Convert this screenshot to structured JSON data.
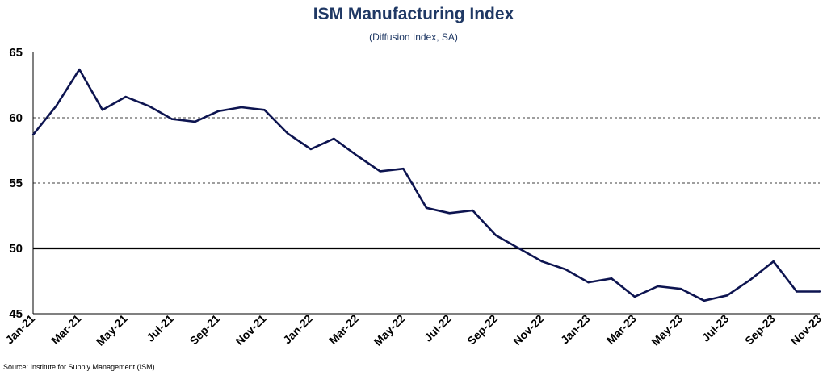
{
  "chart_data": {
    "type": "line",
    "title": "ISM Manufacturing Index",
    "subtitle": "(Diffusion Index, SA)",
    "source": "Source: Institute for Supply Management (ISM)",
    "ylim": [
      45,
      65
    ],
    "yticks": [
      45,
      50,
      55,
      60,
      65
    ],
    "reference_line": 50,
    "grid": "dashed horizontal at 55 and 60",
    "x_tick_labels": [
      "Jan-21",
      "Mar-21",
      "May-21",
      "Jul-21",
      "Sep-21",
      "Nov-21",
      "Jan-22",
      "Mar-22",
      "May-22",
      "Jul-22",
      "Sep-22",
      "Nov-22",
      "Jan-23",
      "Mar-23",
      "May-23",
      "Jul-23",
      "Sep-23",
      "Nov-23"
    ],
    "x": [
      "Jan-21",
      "Feb-21",
      "Mar-21",
      "Apr-21",
      "May-21",
      "Jun-21",
      "Jul-21",
      "Aug-21",
      "Sep-21",
      "Oct-21",
      "Nov-21",
      "Dec-21",
      "Jan-22",
      "Feb-22",
      "Mar-22",
      "Apr-22",
      "May-22",
      "Jun-22",
      "Jul-22",
      "Aug-22",
      "Sep-22",
      "Oct-22",
      "Nov-22",
      "Dec-22",
      "Jan-23",
      "Feb-23",
      "Mar-23",
      "Apr-23",
      "May-23",
      "Jun-23",
      "Jul-23",
      "Aug-23",
      "Sep-23",
      "Oct-23",
      "Nov-23"
    ],
    "values": [
      58.7,
      60.9,
      63.7,
      60.6,
      61.6,
      60.9,
      59.9,
      59.7,
      60.5,
      60.8,
      60.6,
      58.8,
      57.6,
      58.4,
      57.1,
      55.9,
      56.1,
      53.1,
      52.7,
      52.9,
      51.0,
      50.0,
      49.0,
      48.4,
      47.4,
      47.7,
      46.3,
      47.1,
      46.9,
      46.0,
      46.4,
      47.6,
      49.0,
      46.7,
      46.7
    ],
    "line_color": "#0d1450"
  }
}
